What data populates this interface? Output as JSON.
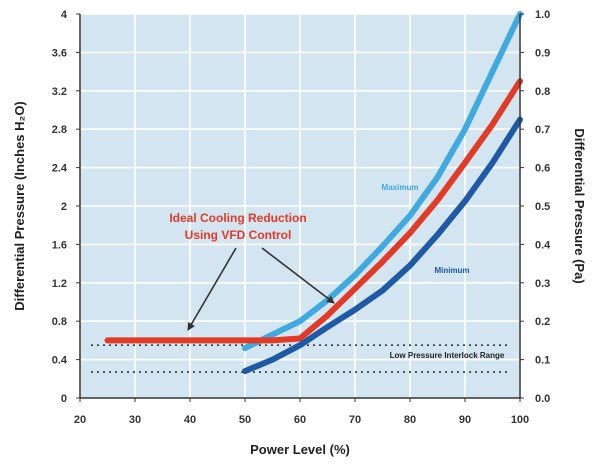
{
  "chart_data": {
    "type": "line",
    "title": "",
    "xlabel": "Power Level (%)",
    "ylabel_left": "Differential Pressure (Inches H₂O)",
    "ylabel_right": "Differential Pressure (Pa)",
    "xlim": [
      20,
      100
    ],
    "ylim_left": [
      0,
      4
    ],
    "ylim_right": [
      0,
      1.0
    ],
    "x_ticks": [
      "20",
      "30",
      "40",
      "50",
      "60",
      "70",
      "80",
      "90",
      "100"
    ],
    "y_ticks_left": [
      "0",
      "0.4",
      "0.8",
      "1.2",
      "1.6",
      "2",
      "2.4",
      "2.8",
      "3.2",
      "3.6",
      "4"
    ],
    "y_ticks_right": [
      "0.0",
      "0.1",
      "0.2",
      "0.3",
      "0.4",
      "0.5",
      "0.6",
      "0.7",
      "0.8",
      "0.9",
      "1.0"
    ],
    "grid": true,
    "colors": {
      "plot_background": "#d4e5f2",
      "grid": "#ffffff",
      "maximum": "#3fa9e0",
      "ideal": "#e23a25",
      "minimum": "#1f5aa6",
      "reference": "#333333"
    },
    "series": [
      {
        "name": "Maximum",
        "color": "#3fa9e0",
        "x": [
          50,
          55,
          60,
          65,
          70,
          75,
          80,
          85,
          90,
          95,
          100
        ],
        "y": [
          0.52,
          0.66,
          0.8,
          1.02,
          1.28,
          1.58,
          1.9,
          2.3,
          2.8,
          3.4,
          4.0
        ]
      },
      {
        "name": "",
        "color": "#e23a25",
        "x": [
          25,
          30,
          35,
          40,
          45,
          50,
          55,
          60,
          65,
          70,
          75,
          80,
          85,
          90,
          95,
          100
        ],
        "y": [
          0.6,
          0.6,
          0.6,
          0.6,
          0.6,
          0.6,
          0.6,
          0.62,
          0.86,
          1.14,
          1.42,
          1.72,
          2.06,
          2.45,
          2.85,
          3.3
        ]
      },
      {
        "name": "Minimum",
        "color": "#1f5aa6",
        "x": [
          50,
          55,
          60,
          65,
          70,
          75,
          80,
          85,
          90,
          95,
          100
        ],
        "y": [
          0.28,
          0.4,
          0.55,
          0.74,
          0.92,
          1.12,
          1.38,
          1.7,
          2.05,
          2.45,
          2.9
        ]
      }
    ],
    "reference_lines": [
      {
        "y": 0.55,
        "style": "dotted"
      },
      {
        "y": 0.27,
        "style": "dotted"
      }
    ],
    "annotations": {
      "ideal_line1": "Ideal Cooling Reduction",
      "ideal_line2": "Using VFD Control",
      "maximum": "Maximum",
      "minimum": "Minimum",
      "low_pressure": "Low Pressure Interlock Range"
    }
  }
}
